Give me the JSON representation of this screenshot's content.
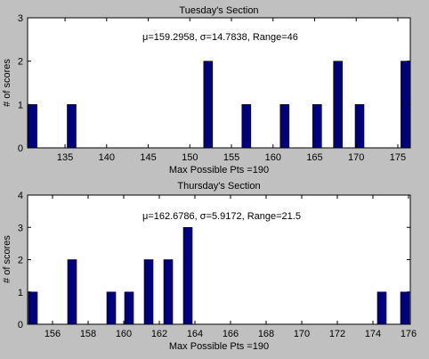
{
  "chart_data": [
    {
      "type": "bar",
      "title": "Tuesday's Section",
      "xlabel": "Max Possible Pts =190",
      "ylabel": "# of scores",
      "annotation": "μ=159.2958, σ=14.7838, Range=46",
      "xlim": [
        130.5,
        176.5
      ],
      "ylim": [
        0,
        3
      ],
      "xticks": [
        135,
        140,
        145,
        150,
        155,
        160,
        165,
        170,
        175
      ],
      "yticks": [
        0,
        1,
        2,
        3
      ],
      "bar_color": "#00007f",
      "x": [
        131.1,
        135.8,
        152.2,
        156.8,
        161.4,
        165.3,
        167.8,
        170.4,
        175.9
      ],
      "values": [
        1,
        1,
        2,
        1,
        1,
        1,
        2,
        1,
        2
      ]
    },
    {
      "type": "bar",
      "title": "Thursday's Section",
      "xlabel": "Max Possible Pts =190",
      "ylabel": "# of scores",
      "annotation": "μ=162.6786, σ=5.9172, Range=21.5",
      "xlim": [
        154.6,
        176.1
      ],
      "ylim": [
        0,
        4
      ],
      "xticks": [
        156,
        158,
        160,
        162,
        164,
        166,
        168,
        170,
        172,
        174,
        176
      ],
      "yticks": [
        0,
        1,
        2,
        3,
        4
      ],
      "bar_color": "#00007f",
      "x": [
        154.9,
        157.1,
        159.3,
        160.3,
        161.4,
        162.5,
        163.6,
        174.5,
        175.8
      ],
      "values": [
        1,
        2,
        1,
        1,
        2,
        2,
        3,
        1,
        1
      ]
    }
  ]
}
